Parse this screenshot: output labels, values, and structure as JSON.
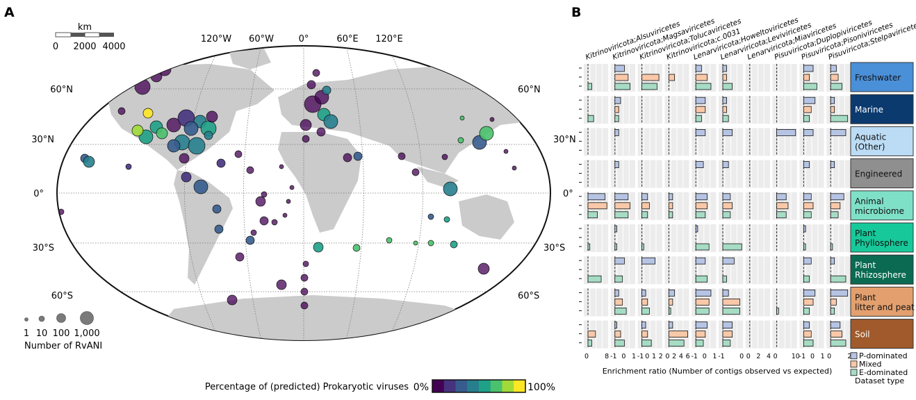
{
  "panels": {
    "a_letter": "A",
    "b_letter": "B"
  },
  "scalebar": {
    "unit": "km",
    "ticks": [
      "0",
      "2000",
      "4000"
    ]
  },
  "map": {
    "lon_labels": [
      "120°W",
      "60°W",
      "0°",
      "60°E",
      "120°E"
    ],
    "lat_labels_left": [
      "60°N",
      "30°N",
      "0°",
      "30°S",
      "60°S"
    ],
    "lat_labels_right": [
      "60°N",
      "30°N",
      "0°",
      "30°S",
      "60°S"
    ],
    "land_color": "#cbcbcb"
  },
  "size_legend": {
    "values": [
      "1",
      "10",
      "100",
      "1,000"
    ],
    "title": "Number of RvANI"
  },
  "colorbar": {
    "label": "Percentage of (predicted) Prokaryotic viruses",
    "min": "0%",
    "max": "100%",
    "colors": [
      "#440154",
      "#46327e",
      "#365c8d",
      "#277f8e",
      "#1fa187",
      "#4ac16d",
      "#a0da39",
      "#fde725"
    ]
  },
  "chart_data": {
    "type": "bar",
    "title": "",
    "xlabel": "Enrichment ratio (Number of contigs observed vs expected)",
    "columns": [
      {
        "taxon": "Kitrinoviricota;Alsuviricetes",
        "ticks": [
          "0",
          "8"
        ]
      },
      {
        "taxon": "Kitrinoviricota;Magsaviricetes",
        "ticks": [
          "-1",
          "0",
          "1"
        ]
      },
      {
        "taxon": "Kitrinoviricota;Tolucaviricetes",
        "ticks": [
          "-1",
          "0",
          "1",
          "2"
        ]
      },
      {
        "taxon": "Kitrinoviricota;c.0031",
        "ticks": [
          "0",
          "2",
          "4",
          "6"
        ]
      },
      {
        "taxon": "Lenarviricota;Howeltoviricetes",
        "ticks": [
          "-1",
          "0",
          "1"
        ]
      },
      {
        "taxon": "Lenarviricota;Leviviricetes",
        "ticks": [
          "-1",
          "0"
        ]
      },
      {
        "taxon": "Lenarviricota;Miaviricetes",
        "ticks": [
          "0",
          "2",
          "4"
        ]
      },
      {
        "taxon": "Pisuviricota;Duplopiviricetes",
        "ticks": [
          "0",
          "10"
        ]
      },
      {
        "taxon": "Pisuviricota;Pisoniviricetes",
        "ticks": [
          "-1",
          "0",
          "1"
        ]
      },
      {
        "taxon": "Pisuviricota;Stelpaviricetes",
        "ticks": [
          "0",
          "2"
        ]
      }
    ],
    "habitats": [
      {
        "label": "Freshwater",
        "color": "#4a90d9",
        "text_color": "#111111"
      },
      {
        "label": "Marine",
        "color": "#0b3a6e",
        "text_color": "#ffffff"
      },
      {
        "label": "Aquatic (Other)",
        "color": "#bcdcf5",
        "text_color": "#111111"
      },
      {
        "label": "Engineered",
        "color": "#8f8f8f",
        "text_color": "#111111"
      },
      {
        "label": "Animal microbiome",
        "color": "#7fe0c8",
        "text_color": "#111111"
      },
      {
        "label": "Plant Phyllosphere",
        "color": "#17c99a",
        "text_color": "#111111"
      },
      {
        "label": "Plant Rhizosphere",
        "color": "#0a6a52",
        "text_color": "#ffffff"
      },
      {
        "label": "Plant litter and peat",
        "color": "#e3a06e",
        "text_color": "#111111"
      },
      {
        "label": "Soil",
        "color": "#a05a2c",
        "text_color": "#ffffff"
      }
    ],
    "series": [
      {
        "name": "P-dominated",
        "color": "#b6c4e4",
        "values": [
          [
            0,
            0.5,
            0,
            0,
            0.3,
            0.2,
            0,
            0,
            0.5,
            0.3
          ],
          [
            0,
            0.3,
            0,
            0,
            0.5,
            0.2,
            0,
            0,
            0.6,
            0.2
          ],
          [
            0,
            0.2,
            0,
            0,
            0.5,
            0.5,
            0,
            1,
            0.5,
            0.8
          ],
          [
            0,
            0.2,
            0,
            0,
            0.4,
            0.3,
            0,
            0,
            0.3,
            0.2
          ],
          [
            0.9,
            0.7,
            0.3,
            0.2,
            0.6,
            0.4,
            0,
            0.5,
            0.4,
            0.7
          ],
          [
            0,
            0.1,
            0,
            0,
            0.1,
            0,
            0,
            0,
            0.1,
            0
          ],
          [
            0,
            0.5,
            0.7,
            0,
            0.5,
            0.6,
            0,
            0,
            0.4,
            0.2
          ],
          [
            0,
            0.2,
            0.2,
            0.3,
            0.8,
            0.3,
            0,
            0,
            0.6,
            0.9
          ],
          [
            0,
            0.1,
            0.2,
            0.2,
            0.6,
            0.5,
            0,
            0,
            0.3,
            0.5
          ]
        ]
      },
      {
        "name": "Mixed",
        "color": "#f8c8a8",
        "values": [
          [
            0,
            0.7,
            0.9,
            0.3,
            0.6,
            0.2,
            0,
            0,
            0.3,
            0.4
          ],
          [
            0,
            0.2,
            0,
            0,
            0.5,
            0.2,
            0,
            0,
            0.4,
            0.2
          ],
          [
            0,
            0,
            0,
            0,
            0,
            0,
            0,
            0,
            0,
            0
          ],
          [
            0,
            0,
            0,
            0,
            0,
            0,
            0,
            0,
            0,
            0
          ],
          [
            1,
            0.8,
            0.4,
            0.2,
            0.6,
            0.5,
            0,
            0.6,
            0.5,
            0.5
          ],
          [
            0,
            0,
            0,
            0,
            0,
            0,
            0,
            0,
            0,
            0
          ],
          [
            0,
            0,
            0,
            0,
            0,
            0,
            0,
            0,
            0,
            0
          ],
          [
            0,
            0.4,
            0.3,
            0.2,
            0.7,
            0.9,
            0,
            0,
            0.5,
            0.3
          ],
          [
            0.4,
            0.3,
            0.3,
            1,
            0.5,
            0.5,
            0,
            0,
            0.4,
            0.6
          ]
        ]
      },
      {
        "name": "E-dominated",
        "color": "#a6dcc4",
        "values": [
          [
            0.2,
            0.8,
            0.8,
            0,
            0.8,
            0.5,
            0,
            0,
            0.7,
            0.6
          ],
          [
            0.3,
            0.2,
            0,
            0,
            0.3,
            0.3,
            0,
            0,
            0.3,
            0.9
          ],
          [
            0,
            0,
            0,
            0,
            0,
            0,
            0,
            0,
            0,
            0
          ],
          [
            0,
            0,
            0,
            0,
            0,
            0,
            0,
            0,
            0,
            0
          ],
          [
            0.5,
            0.7,
            0.3,
            0.2,
            0.5,
            0.4,
            0,
            0.5,
            0.4,
            0.4
          ],
          [
            0.1,
            0.1,
            0.1,
            0,
            0.7,
            1,
            0,
            0,
            0.1,
            0.1
          ],
          [
            0.7,
            0.4,
            0,
            0,
            0.6,
            0.2,
            0,
            0,
            0.3,
            0.8
          ],
          [
            0,
            0.6,
            0.4,
            0.1,
            0.7,
            0.9,
            0,
            0.1,
            0.3,
            0.2
          ],
          [
            0.2,
            0.5,
            0.5,
            0.8,
            0.4,
            0.4,
            0,
            0,
            0.5,
            0.8
          ]
        ]
      }
    ],
    "legend": {
      "title": "Dataset type",
      "placement": "bottom-right"
    }
  }
}
